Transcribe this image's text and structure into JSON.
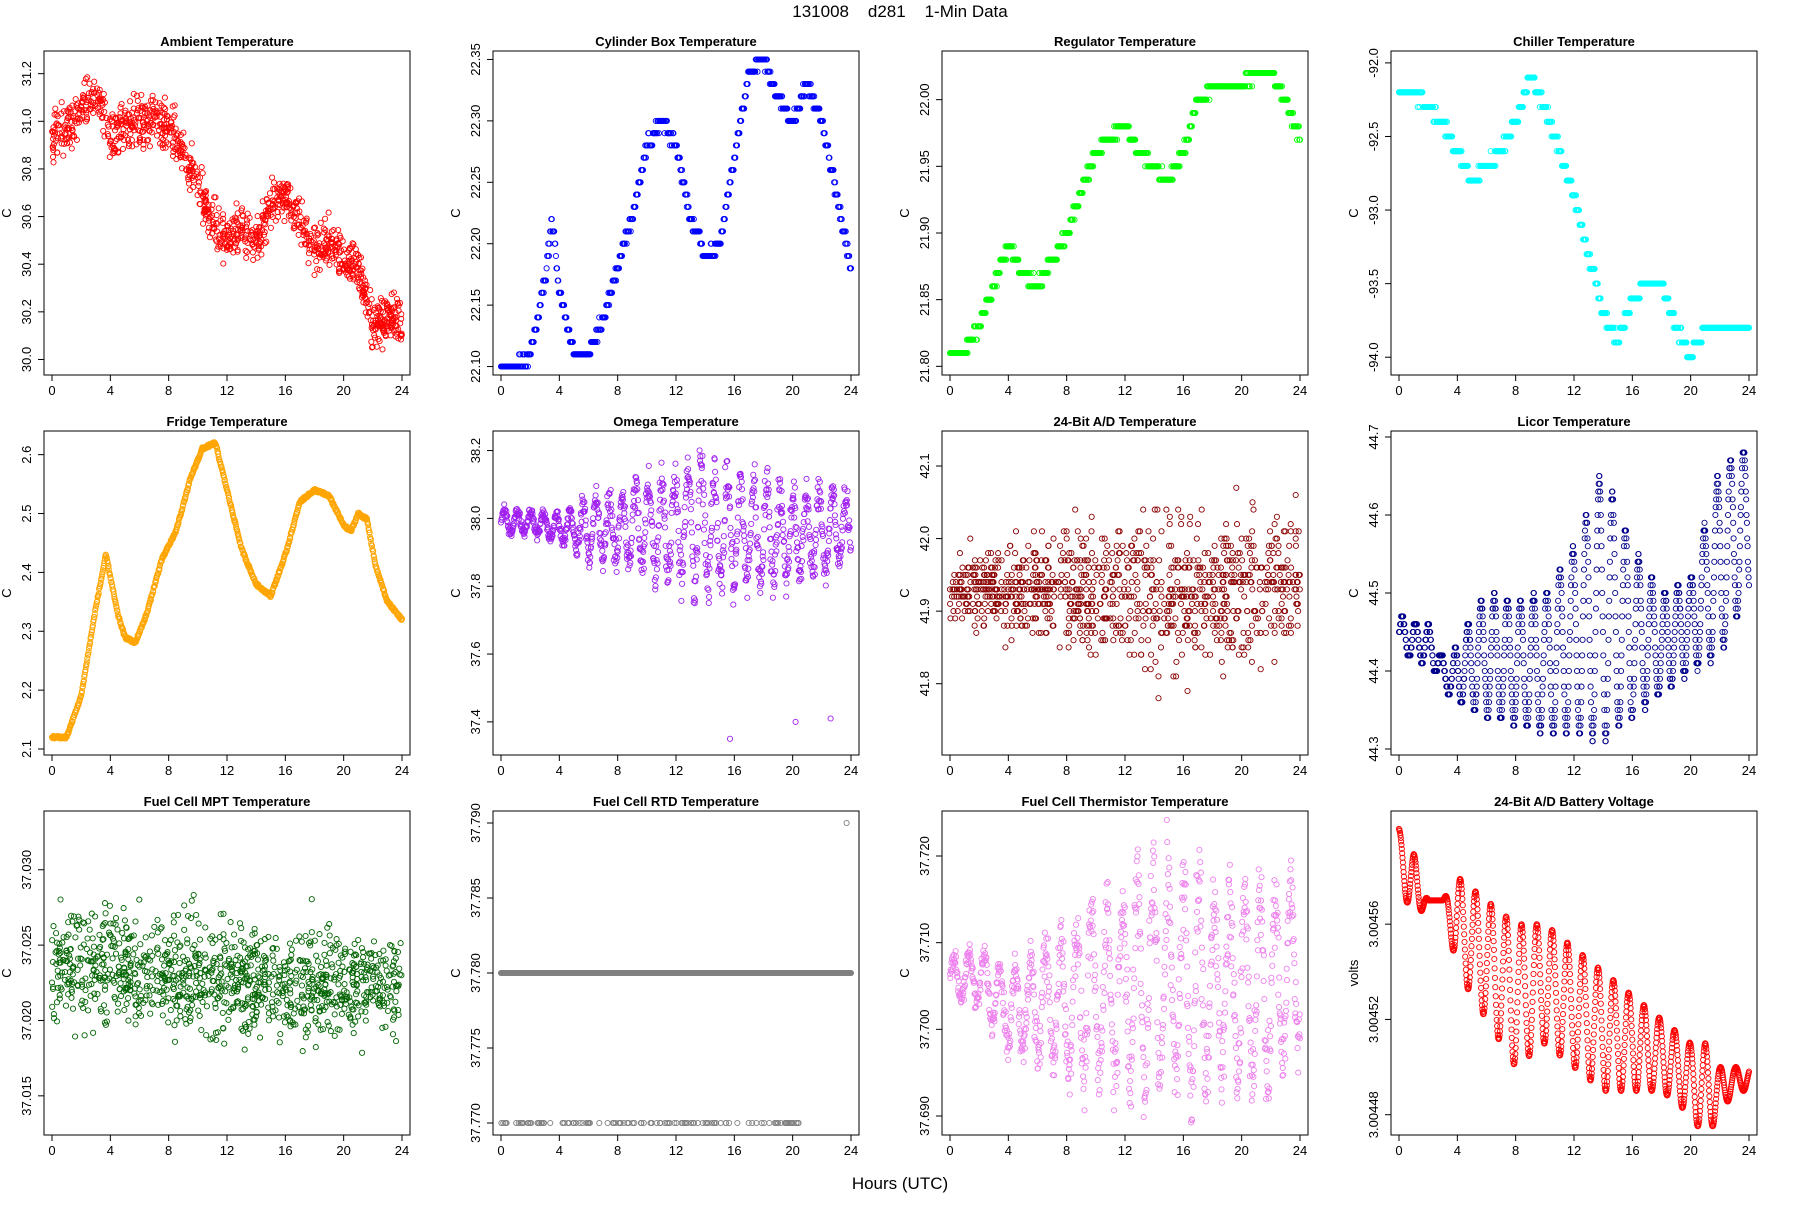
{
  "figure": {
    "title": "131008    d281    1-Min Data",
    "xlabel": "Hours (UTC)"
  },
  "chart_data": [
    {
      "type": "scatter",
      "title": "Ambient Temperature",
      "xlabel": "",
      "ylabel": "C",
      "color": "#ff0000",
      "xlim": [
        0,
        24
      ],
      "ylim": [
        29.96,
        31.27
      ],
      "xticks": [
        0,
        4,
        8,
        12,
        16,
        20,
        24
      ],
      "yticks": [
        30.0,
        30.2,
        30.4,
        30.6,
        30.8,
        31.0,
        31.2
      ],
      "ytick_labels": [
        "30.0",
        "30.2",
        "30.4",
        "30.6",
        "30.8",
        "31.0",
        "31.2"
      ],
      "series": [
        {
          "name": "Ambient Temperature",
          "pattern": "noisy",
          "x": [
            0,
            1,
            2,
            3,
            4,
            5,
            6,
            7,
            8,
            9,
            10,
            11,
            12,
            13,
            14,
            15,
            16,
            17,
            18,
            19,
            20,
            21,
            22,
            23,
            24
          ],
          "y": [
            30.93,
            30.97,
            31.05,
            31.12,
            30.92,
            30.98,
            31.0,
            31.0,
            30.98,
            30.87,
            30.72,
            30.58,
            30.5,
            30.55,
            30.48,
            30.66,
            30.68,
            30.58,
            30.48,
            30.5,
            30.43,
            30.4,
            30.15,
            30.18,
            30.15
          ],
          "spread": 0.1
        }
      ]
    },
    {
      "type": "scatter",
      "title": "Cylinder Box Temperature",
      "xlabel": "",
      "ylabel": "C",
      "color": "#0000ff",
      "xlim": [
        0,
        24
      ],
      "ylim": [
        22.098,
        22.352
      ],
      "xticks": [
        0,
        4,
        8,
        12,
        16,
        20,
        24
      ],
      "yticks": [
        22.1,
        22.15,
        22.2,
        22.25,
        22.3,
        22.35
      ],
      "ytick_labels": [
        "22.10",
        "22.15",
        "22.20",
        "22.25",
        "22.30",
        "22.35"
      ],
      "series": [
        {
          "name": "Cylinder Box Temperature",
          "pattern": "step",
          "step": 0.01,
          "x": [
            0,
            1,
            2,
            3,
            3.5,
            4,
            5,
            6,
            7,
            8,
            9,
            10,
            11,
            12,
            13,
            14,
            15,
            16,
            17,
            18,
            19,
            20,
            21,
            22,
            23,
            24
          ],
          "y": [
            22.1,
            22.1,
            22.11,
            22.17,
            22.22,
            22.16,
            22.11,
            22.11,
            22.14,
            22.18,
            22.22,
            22.28,
            22.3,
            22.28,
            22.22,
            22.19,
            22.2,
            22.27,
            22.34,
            22.35,
            22.32,
            22.3,
            22.33,
            22.3,
            22.24,
            22.18
          ],
          "spread": 0.008
        }
      ]
    },
    {
      "type": "scatter",
      "title": "Regulator Temperature",
      "xlabel": "",
      "ylabel": "C",
      "color": "#00ff00",
      "xlim": [
        0,
        24
      ],
      "ylim": [
        21.798,
        22.032
      ],
      "xticks": [
        0,
        4,
        8,
        12,
        16,
        20,
        24
      ],
      "yticks": [
        21.8,
        21.85,
        21.9,
        21.95,
        22.0
      ],
      "ytick_labels": [
        "21.80",
        "21.85",
        "21.90",
        "21.95",
        "22.00"
      ],
      "series": [
        {
          "name": "Regulator Temperature",
          "pattern": "step",
          "step": 0.01,
          "x": [
            0,
            1,
            2,
            3,
            4,
            5,
            6,
            7,
            8,
            9,
            10,
            11,
            12,
            13,
            14,
            15,
            16,
            17,
            18,
            19,
            20,
            21,
            22,
            23,
            24
          ],
          "y": [
            21.81,
            21.81,
            21.83,
            21.86,
            21.89,
            21.87,
            21.86,
            21.88,
            21.9,
            21.93,
            21.96,
            21.97,
            21.98,
            21.96,
            21.95,
            21.94,
            21.96,
            22.0,
            22.01,
            22.01,
            22.01,
            22.02,
            22.02,
            22.0,
            21.97
          ],
          "spread": 0.006
        }
      ]
    },
    {
      "type": "scatter",
      "title": "Chiller Temperature",
      "xlabel": "",
      "ylabel": "C",
      "color": "#00ffff",
      "xlim": [
        0,
        24
      ],
      "ylim": [
        -94.08,
        -91.96
      ],
      "xticks": [
        0,
        4,
        8,
        12,
        16,
        20,
        24
      ],
      "yticks": [
        -94.0,
        -93.5,
        -93.0,
        -92.5,
        -92.0
      ],
      "ytick_labels": [
        "-94.0",
        "-93.5",
        "-93.0",
        "-92.5",
        "-92.0"
      ],
      "series": [
        {
          "name": "Chiller Temperature",
          "pattern": "step",
          "step": 0.1,
          "x": [
            0,
            1,
            2,
            3,
            4,
            5,
            6,
            7,
            8,
            9,
            10,
            11,
            12,
            13,
            14,
            15,
            16,
            17,
            18,
            19,
            20,
            21,
            22,
            23,
            24
          ],
          "y": [
            -92.2,
            -92.2,
            -92.3,
            -92.4,
            -92.6,
            -92.8,
            -92.7,
            -92.6,
            -92.4,
            -92.1,
            -92.3,
            -92.6,
            -92.9,
            -93.3,
            -93.7,
            -93.9,
            -93.6,
            -93.5,
            -93.5,
            -93.8,
            -94.0,
            -93.8,
            -93.8,
            -93.8,
            -93.8
          ],
          "spread": 0.06
        }
      ]
    },
    {
      "type": "scatter",
      "title": "Fridge Temperature",
      "xlabel": "",
      "ylabel": "C",
      "color": "#ffa500",
      "xlim": [
        0,
        24
      ],
      "ylim": [
        2.1,
        2.63
      ],
      "xticks": [
        0,
        4,
        8,
        12,
        16,
        20,
        24
      ],
      "yticks": [
        2.1,
        2.2,
        2.3,
        2.4,
        2.5,
        2.6
      ],
      "ytick_labels": [
        "2.1",
        "2.2",
        "2.3",
        "2.4",
        "2.5",
        "2.6"
      ],
      "series": [
        {
          "name": "Fridge Temperature",
          "pattern": "smooth",
          "x": [
            0,
            1,
            2,
            3,
            3.7,
            4.5,
            5,
            5.7,
            6.5,
            7.5,
            8.5,
            9.5,
            10.3,
            11.2,
            11.8,
            13,
            14,
            15,
            16,
            17,
            18,
            19,
            20,
            20.5,
            21,
            21.6,
            22.2,
            23,
            24
          ],
          "y": [
            2.12,
            2.12,
            2.19,
            2.34,
            2.43,
            2.33,
            2.29,
            2.28,
            2.33,
            2.42,
            2.47,
            2.56,
            2.61,
            2.62,
            2.56,
            2.44,
            2.38,
            2.36,
            2.43,
            2.52,
            2.54,
            2.53,
            2.48,
            2.47,
            2.5,
            2.49,
            2.41,
            2.35,
            2.32
          ],
          "spread": 0.005
        }
      ]
    },
    {
      "type": "scatter",
      "title": "Omega Temperature",
      "xlabel": "",
      "ylabel": "C",
      "color": "#a020f0",
      "xlim": [
        0,
        24
      ],
      "ylim": [
        37.32,
        38.24
      ],
      "xticks": [
        0,
        4,
        8,
        12,
        16,
        20,
        24
      ],
      "yticks": [
        37.4,
        37.6,
        37.8,
        38.0,
        38.2
      ],
      "ytick_labels": [
        "37.4",
        "37.6",
        "37.8",
        "38.0",
        "38.2"
      ],
      "series": [
        {
          "name": "Omega Temperature",
          "pattern": "oscillate",
          "period": 0.9,
          "x": [
            0,
            2,
            4,
            6,
            8,
            10,
            12,
            14,
            16,
            18,
            20,
            22,
            24
          ],
          "y": [
            37.99,
            37.99,
            37.97,
            37.97,
            37.97,
            37.98,
            37.98,
            37.98,
            37.96,
            37.96,
            37.95,
            37.96,
            37.98
          ],
          "amp": [
            0.03,
            0.03,
            0.04,
            0.08,
            0.1,
            0.13,
            0.15,
            0.18,
            0.15,
            0.14,
            0.12,
            0.12,
            0.08
          ],
          "outliers": [
            [
              15.7,
              37.35
            ],
            [
              20.2,
              37.4
            ],
            [
              22.6,
              37.41
            ]
          ]
        }
      ]
    },
    {
      "type": "scatter",
      "title": "24-Bit A/D Temperature",
      "xlabel": "",
      "ylabel": "C",
      "color": "#8b0000",
      "xlim": [
        0,
        24
      ],
      "ylim": [
        41.71,
        42.14
      ],
      "xticks": [
        0,
        4,
        8,
        12,
        16,
        20,
        24
      ],
      "yticks": [
        41.8,
        41.9,
        42.0,
        42.1
      ],
      "ytick_labels": [
        "41.8",
        "41.9",
        "42.0",
        "42.1"
      ],
      "series": [
        {
          "name": "24-Bit A/D Temperature",
          "pattern": "quantized",
          "step": 0.01,
          "x": [
            0,
            4,
            8,
            12,
            16,
            20,
            24
          ],
          "y": [
            41.93,
            41.93,
            41.93,
            41.93,
            41.92,
            41.93,
            41.95
          ],
          "amp": [
            0.04,
            0.06,
            0.07,
            0.1,
            0.11,
            0.1,
            0.1
          ]
        }
      ]
    },
    {
      "type": "scatter",
      "title": "Licor Temperature",
      "xlabel": "",
      "ylabel": "C",
      "color": "#00008b",
      "xlim": [
        0,
        24
      ],
      "ylim": [
        44.3,
        44.7
      ],
      "xticks": [
        0,
        4,
        8,
        12,
        16,
        20,
        24
      ],
      "yticks": [
        44.3,
        44.4,
        44.5,
        44.6,
        44.7
      ],
      "ytick_labels": [
        "44.3",
        "44.4",
        "44.5",
        "44.6",
        "44.7"
      ],
      "series": [
        {
          "name": "Licor Temperature",
          "pattern": "columns",
          "period": 0.9,
          "step": 0.01,
          "x": [
            0,
            2,
            3.5,
            4,
            6,
            8,
            10,
            12,
            14,
            16,
            18,
            20,
            22,
            24
          ],
          "lo": [
            44.42,
            44.41,
            44.37,
            44.36,
            44.34,
            44.33,
            44.32,
            44.32,
            44.31,
            44.34,
            44.37,
            44.4,
            44.42,
            44.5
          ],
          "hi": [
            44.47,
            44.46,
            44.4,
            44.44,
            44.5,
            44.49,
            44.5,
            44.56,
            44.66,
            44.56,
            44.5,
            44.52,
            44.66,
            44.69
          ]
        }
      ]
    },
    {
      "type": "scatter",
      "title": "Fuel Cell MPT Temperature",
      "xlabel": "",
      "ylabel": "C",
      "color": "#006400",
      "xlim": [
        0,
        24
      ],
      "ylim": [
        37.0128,
        37.0335
      ],
      "xticks": [
        0,
        4,
        8,
        12,
        16,
        20,
        24
      ],
      "yticks": [
        37.015,
        37.02,
        37.025,
        37.03
      ],
      "ytick_labels": [
        "37.015",
        "37.020",
        "37.025",
        "37.030"
      ],
      "series": [
        {
          "name": "Fuel Cell MPT Temperature",
          "pattern": "noisy",
          "x": [
            0,
            6,
            12,
            18,
            24
          ],
          "y": [
            37.0235,
            37.0235,
            37.0228,
            37.0224,
            37.0222
          ],
          "spread": 0.0037
        }
      ]
    },
    {
      "type": "scatter",
      "title": "Fuel Cell RTD Temperature",
      "xlabel": "",
      "ylabel": "C",
      "color": "#808080",
      "xlim": [
        0,
        24
      ],
      "ylim": [
        37.7696,
        37.7904
      ],
      "xticks": [
        0,
        4,
        8,
        12,
        16,
        20,
        24
      ],
      "yticks": [
        37.77,
        37.775,
        37.78,
        37.785,
        37.79
      ],
      "ytick_labels": [
        "37.770",
        "37.775",
        "37.780",
        "37.785",
        "37.790"
      ],
      "series": [
        {
          "name": "Fuel Cell RTD Temperature",
          "pattern": "twolevel",
          "levels": [
            37.78,
            37.77
          ],
          "level2_xrange": [
            0,
            20.5
          ],
          "level2_fraction": 0.35,
          "outliers": [
            [
              23.7,
              37.79
            ]
          ]
        }
      ]
    },
    {
      "type": "scatter",
      "title": "Fuel Cell Thermistor Temperature",
      "xlabel": "",
      "ylabel": "C",
      "color": "#ee82ee",
      "xlim": [
        0,
        24
      ],
      "ylim": [
        37.6885,
        37.7245
      ],
      "xticks": [
        0,
        4,
        8,
        12,
        16,
        20,
        24
      ],
      "yticks": [
        37.69,
        37.7,
        37.71,
        37.72
      ],
      "ytick_labels": [
        "37.690",
        "37.700",
        "37.710",
        "37.720"
      ],
      "series": [
        {
          "name": "Fuel Cell Thermistor Temperature",
          "pattern": "oscillate",
          "period": 1.05,
          "x": [
            0,
            2,
            4,
            6,
            8,
            10,
            12,
            14,
            16,
            18,
            20,
            22,
            24
          ],
          "y": [
            37.706,
            37.706,
            37.702,
            37.703,
            37.703,
            37.704,
            37.705,
            37.706,
            37.705,
            37.705,
            37.705,
            37.705,
            37.708
          ],
          "amp": [
            0.002,
            0.003,
            0.004,
            0.006,
            0.008,
            0.009,
            0.011,
            0.014,
            0.012,
            0.011,
            0.01,
            0.011,
            0.009
          ]
        }
      ]
    },
    {
      "type": "scatter",
      "title": "24-Bit A/D Battery Voltage",
      "xlabel": "",
      "ylabel": "volts",
      "color": "#ff0000",
      "xlim": [
        0,
        24
      ],
      "ylim": [
        3.004474,
        3.004605
      ],
      "xticks": [
        0,
        4,
        8,
        12,
        16,
        20,
        24
      ],
      "yticks": [
        3.00448,
        3.00452,
        3.00456
      ],
      "ytick_labels": [
        "3.00448",
        "3.00452",
        "3.00456"
      ],
      "series": [
        {
          "name": "24-Bit A/D Battery Voltage",
          "pattern": "wave",
          "period": 1.05,
          "x": [
            0,
            1,
            2,
            3,
            4,
            6,
            8,
            10,
            12,
            14,
            16,
            18,
            20,
            21,
            22,
            23,
            24
          ],
          "hi": [
            3.0046,
            3.00459,
            3.00457,
            3.00457,
            3.00458,
            3.00457,
            3.00456,
            3.00456,
            3.00455,
            3.00454,
            3.00453,
            3.00452,
            3.00451,
            3.00451,
            3.0045,
            3.0045,
            3.0045
          ],
          "lo": [
            3.00458,
            3.00456,
            3.00457,
            3.00457,
            3.00454,
            3.00452,
            3.0045,
            3.00451,
            3.0045,
            3.00449,
            3.00449,
            3.00449,
            3.00448,
            3.00447,
            3.00448,
            3.00449,
            3.00449
          ]
        }
      ]
    }
  ]
}
